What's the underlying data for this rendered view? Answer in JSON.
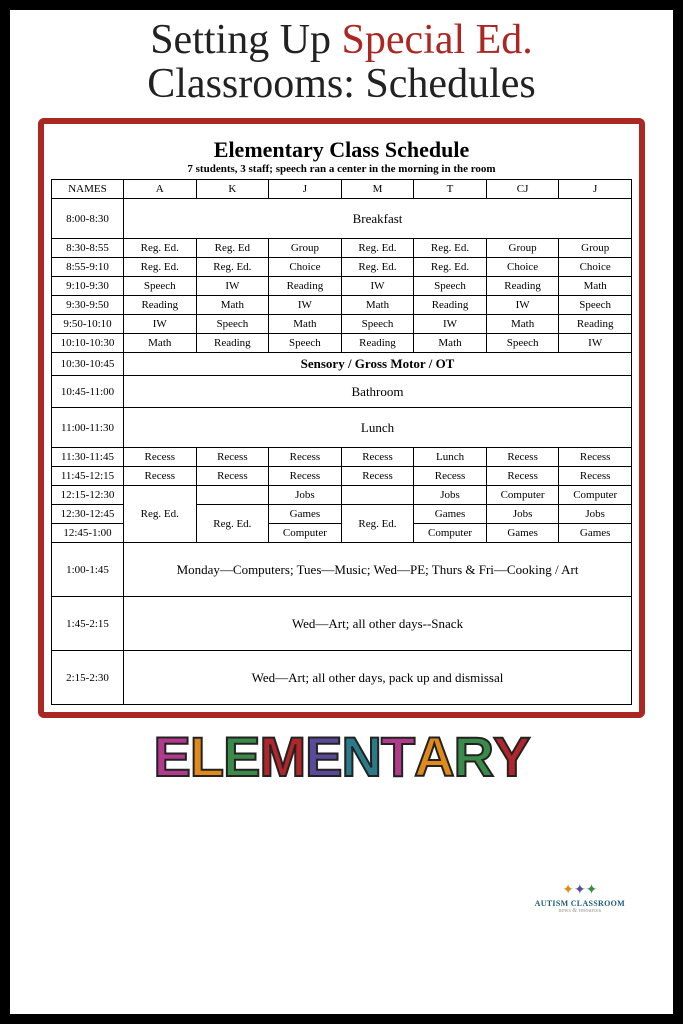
{
  "header": {
    "line1_a": "Setting Up ",
    "line1_b": "Special Ed.",
    "line2": "Classrooms: Schedules"
  },
  "schedule": {
    "title": "Elementary Class Schedule",
    "subtitle": "7 students, 3 staff; speech ran a center in the morning in the room",
    "col_header": "NAMES",
    "students": [
      "A",
      "K",
      "J",
      "M",
      "T",
      "CJ",
      "J"
    ],
    "rows": [
      {
        "time": "8:00-8:30",
        "span": "Breakfast",
        "height": "tall"
      },
      {
        "time": "8:30-8:55",
        "cells": [
          "Reg. Ed.",
          "Reg. Ed",
          "Group",
          "Reg. Ed.",
          "Reg. Ed.",
          "Group",
          "Group"
        ]
      },
      {
        "time": "8:55-9:10",
        "cells": [
          "Reg. Ed.",
          "Reg. Ed.",
          "Choice",
          "Reg. Ed.",
          "Reg. Ed.",
          "Choice",
          "Choice"
        ]
      },
      {
        "time": "9:10-9:30",
        "cells": [
          "Speech",
          "IW",
          "Reading",
          "IW",
          "Speech",
          "Reading",
          "Math"
        ]
      },
      {
        "time": "9:30-9:50",
        "cells": [
          "Reading",
          "Math",
          "IW",
          "Math",
          "Reading",
          "IW",
          "Speech"
        ]
      },
      {
        "time": "9:50-10:10",
        "cells": [
          "IW",
          "Speech",
          "Math",
          "Speech",
          "IW",
          "Math",
          "Reading"
        ]
      },
      {
        "time": "10:10-10:30",
        "cells": [
          "Math",
          "Reading",
          "Speech",
          "Reading",
          "Math",
          "Speech",
          "IW"
        ]
      },
      {
        "time": "10:30-10:45",
        "span": "Sensory / Gross Motor / OT",
        "bold": true
      },
      {
        "time": "10:45-11:00",
        "span": "Bathroom",
        "height": "med"
      },
      {
        "time": "11:00-11:30",
        "span": "Lunch",
        "height": "tall"
      },
      {
        "time": "11:30-11:45",
        "cells": [
          "Recess",
          "Recess",
          "Recess",
          "Recess",
          "Lunch",
          "Recess",
          "Recess"
        ]
      },
      {
        "time": "11:45-12:15",
        "cells": [
          "Recess",
          "Recess",
          "Recess",
          "Recess",
          "Recess",
          "Recess",
          "Recess"
        ]
      }
    ],
    "merged_block": {
      "times": [
        "12:15-12:30",
        "12:30-12:45",
        "12:45-1:00"
      ],
      "col0": "Reg. Ed.",
      "col1": "Reg. Ed.",
      "col3": "Reg. Ed.",
      "r0": [
        "Jobs",
        "Jobs",
        "Computer",
        "Computer"
      ],
      "r1": [
        "Games",
        "Games",
        "Jobs",
        "Jobs"
      ],
      "r2": [
        "Computer",
        "Computer",
        "Games",
        "Games"
      ]
    },
    "bottom_rows": [
      {
        "time": "1:00-1:45",
        "span": "Monday—Computers; Tues—Music; Wed—PE; Thurs & Fri—Cooking / Art",
        "height": "xl"
      },
      {
        "time": "1:45-2:15",
        "span": "Wed—Art; all other days--Snack",
        "height": "xl"
      },
      {
        "time": "2:15-2:30",
        "span": "Wed—Art; all other days, pack up and dismissal",
        "height": "xl"
      }
    ]
  },
  "logo": {
    "line1": "AUTISM CLASSROOM",
    "line2": "news & resources"
  },
  "footer": {
    "letters": [
      "E",
      "L",
      "E",
      "M",
      "E",
      "N",
      "T",
      "A",
      "R",
      "Y"
    ],
    "colors": [
      "#b13a8c",
      "#e08a1e",
      "#3a8a4a",
      "#b0262a",
      "#5a4a9a",
      "#2a7a8a",
      "#b13a8c",
      "#e08a1e",
      "#3a8a4a",
      "#b0262a"
    ]
  }
}
